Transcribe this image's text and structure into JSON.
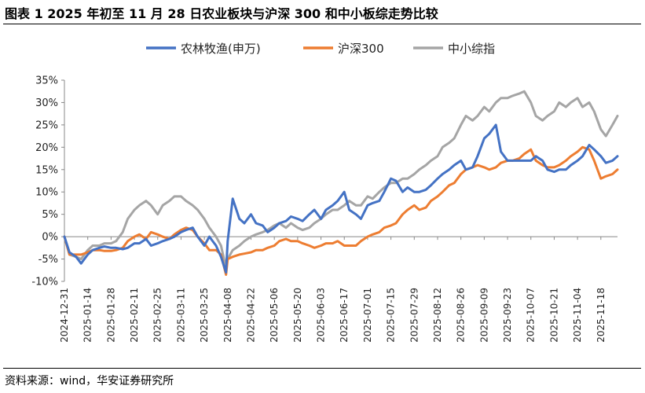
{
  "header": {
    "title": "图表 1 2025 年初至 11 月 28 日农业板块与沪深 300 和中小板综走势比较"
  },
  "footer": {
    "source": "资料来源：wind，华安证券研究所"
  },
  "chart_data": {
    "type": "line",
    "title": "",
    "xlabel": "",
    "ylabel": "",
    "ylim": [
      -10,
      35
    ],
    "yticks": [
      "-10%",
      "-5%",
      "0%",
      "5%",
      "10%",
      "15%",
      "20%",
      "25%",
      "30%",
      "35%"
    ],
    "ytick_values": [
      -10,
      -5,
      0,
      5,
      10,
      15,
      20,
      25,
      30,
      35
    ],
    "grid": false,
    "legend_position": "top-center",
    "x_tick_labels": [
      "2024-12-31",
      "2025-01-14",
      "2025-01-28",
      "2025-02-11",
      "2025-02-25",
      "2025-03-11",
      "2025-03-25",
      "2025-04-08",
      "2025-04-22",
      "2025-05-06",
      "2025-05-20",
      "2025-06-03",
      "2025-06-17",
      "2025-07-01",
      "2025-07-15",
      "2025-07-29",
      "2025-08-12",
      "2025-08-26",
      "2025-09-09",
      "2025-09-23",
      "2025-10-07",
      "2025-10-21",
      "2025-11-04",
      "2025-11-18"
    ],
    "x": [
      "2024-12-31",
      "2025-01-03",
      "2025-01-07",
      "2025-01-10",
      "2025-01-14",
      "2025-01-17",
      "2025-01-21",
      "2025-01-24",
      "2025-01-28",
      "2025-01-31",
      "2025-02-04",
      "2025-02-07",
      "2025-02-11",
      "2025-02-14",
      "2025-02-18",
      "2025-02-21",
      "2025-02-25",
      "2025-02-28",
      "2025-03-04",
      "2025-03-07",
      "2025-03-11",
      "2025-03-14",
      "2025-03-18",
      "2025-03-21",
      "2025-03-25",
      "2025-03-28",
      "2025-04-01",
      "2025-04-04",
      "2025-04-07",
      "2025-04-08",
      "2025-04-11",
      "2025-04-15",
      "2025-04-18",
      "2025-04-22",
      "2025-04-25",
      "2025-04-29",
      "2025-05-02",
      "2025-05-06",
      "2025-05-09",
      "2025-05-13",
      "2025-05-16",
      "2025-05-20",
      "2025-05-23",
      "2025-05-27",
      "2025-05-30",
      "2025-06-03",
      "2025-06-06",
      "2025-06-10",
      "2025-06-13",
      "2025-06-17",
      "2025-06-20",
      "2025-06-24",
      "2025-06-27",
      "2025-07-01",
      "2025-07-04",
      "2025-07-08",
      "2025-07-11",
      "2025-07-15",
      "2025-07-18",
      "2025-07-22",
      "2025-07-25",
      "2025-07-29",
      "2025-08-01",
      "2025-08-05",
      "2025-08-08",
      "2025-08-12",
      "2025-08-15",
      "2025-08-19",
      "2025-08-22",
      "2025-08-26",
      "2025-08-29",
      "2025-09-02",
      "2025-09-05",
      "2025-09-09",
      "2025-09-12",
      "2025-09-16",
      "2025-09-19",
      "2025-09-23",
      "2025-09-26",
      "2025-09-30",
      "2025-10-03",
      "2025-10-07",
      "2025-10-10",
      "2025-10-14",
      "2025-10-17",
      "2025-10-21",
      "2025-10-24",
      "2025-10-28",
      "2025-10-31",
      "2025-11-04",
      "2025-11-07",
      "2025-11-11",
      "2025-11-14",
      "2025-11-18",
      "2025-11-21",
      "2025-11-25",
      "2025-11-28"
    ],
    "series": [
      {
        "name": "农林牧渔(申万)",
        "color": "#4472C4",
        "values": [
          0,
          -3.5,
          -4.5,
          -6,
          -4,
          -3,
          -2.5,
          -2.2,
          -2.5,
          -2.5,
          -2.8,
          -2.5,
          -1.5,
          -1.5,
          -0.5,
          -2,
          -1.5,
          -1,
          -0.5,
          0,
          1,
          1.5,
          2,
          0,
          -2,
          0,
          -2,
          -4.5,
          -8,
          -1,
          8.5,
          4,
          3,
          5,
          3,
          2.5,
          1,
          2,
          3,
          3.5,
          4.5,
          4,
          3.5,
          5,
          6,
          4,
          6,
          7,
          8,
          10,
          6,
          5,
          4,
          7,
          7.5,
          8,
          10,
          13,
          12.5,
          10,
          11,
          10,
          10,
          10.5,
          11.5,
          13,
          14,
          15,
          16,
          17,
          15,
          15.5,
          18,
          22,
          23,
          25,
          19,
          17,
          17,
          17,
          17,
          17,
          18,
          17,
          15,
          14.5,
          15,
          15,
          16,
          17,
          18,
          20.5,
          19.5,
          18,
          16.5,
          17,
          18
        ]
      },
      {
        "name": "沪深300",
        "color": "#ED7D31",
        "values": [
          0,
          -4,
          -4,
          -4,
          -3.5,
          -3,
          -3,
          -3.2,
          -3.2,
          -3,
          -2.5,
          -1,
          0,
          0.5,
          -0.5,
          1,
          0.5,
          0,
          -0.5,
          0.5,
          1.5,
          2,
          1.5,
          0,
          -1.5,
          -3,
          -3,
          -4,
          -8.5,
          -5,
          -4.5,
          -4,
          -3.8,
          -3.5,
          -3,
          -3,
          -2.5,
          -2,
          -1,
          -0.5,
          -1,
          -1,
          -1.5,
          -2,
          -2.5,
          -2,
          -1.5,
          -1.5,
          -1,
          -2,
          -2,
          -2,
          -1,
          0,
          0.5,
          1,
          2,
          2.5,
          3,
          5,
          6,
          7,
          6,
          6.5,
          8,
          9,
          10,
          11.5,
          12,
          14,
          15,
          15.5,
          16,
          15.5,
          15,
          15.5,
          16.5,
          17,
          17,
          17.5,
          18.5,
          19.5,
          17,
          16,
          15.5,
          15.5,
          16,
          17,
          18,
          19,
          20,
          19.5,
          17,
          13,
          13.5,
          14,
          15
        ]
      },
      {
        "name": "中小综指",
        "color": "#A5A5A5",
        "values": [
          0,
          -4,
          -4.5,
          -5,
          -3,
          -2,
          -2,
          -1.5,
          -1.5,
          -1,
          1,
          4,
          6,
          7,
          8,
          7,
          5,
          7,
          8,
          9,
          9,
          8,
          7,
          6,
          4,
          2,
          0,
          -2,
          -7,
          -5,
          -3,
          -2,
          -1,
          0,
          0.5,
          1,
          1.5,
          2.5,
          3,
          2,
          3,
          2,
          1.5,
          2,
          3,
          4,
          5,
          6,
          6,
          7,
          8,
          7,
          7,
          9,
          8.5,
          10,
          11,
          12,
          12,
          13,
          13,
          14,
          15,
          16,
          17,
          18,
          20,
          21,
          22,
          25,
          27,
          26,
          27,
          29,
          28,
          30,
          31,
          31,
          31.5,
          32,
          32.5,
          30,
          27,
          26,
          27,
          28,
          30,
          29,
          30,
          31,
          29,
          30,
          28,
          24,
          22.5,
          25,
          27
        ]
      }
    ]
  }
}
